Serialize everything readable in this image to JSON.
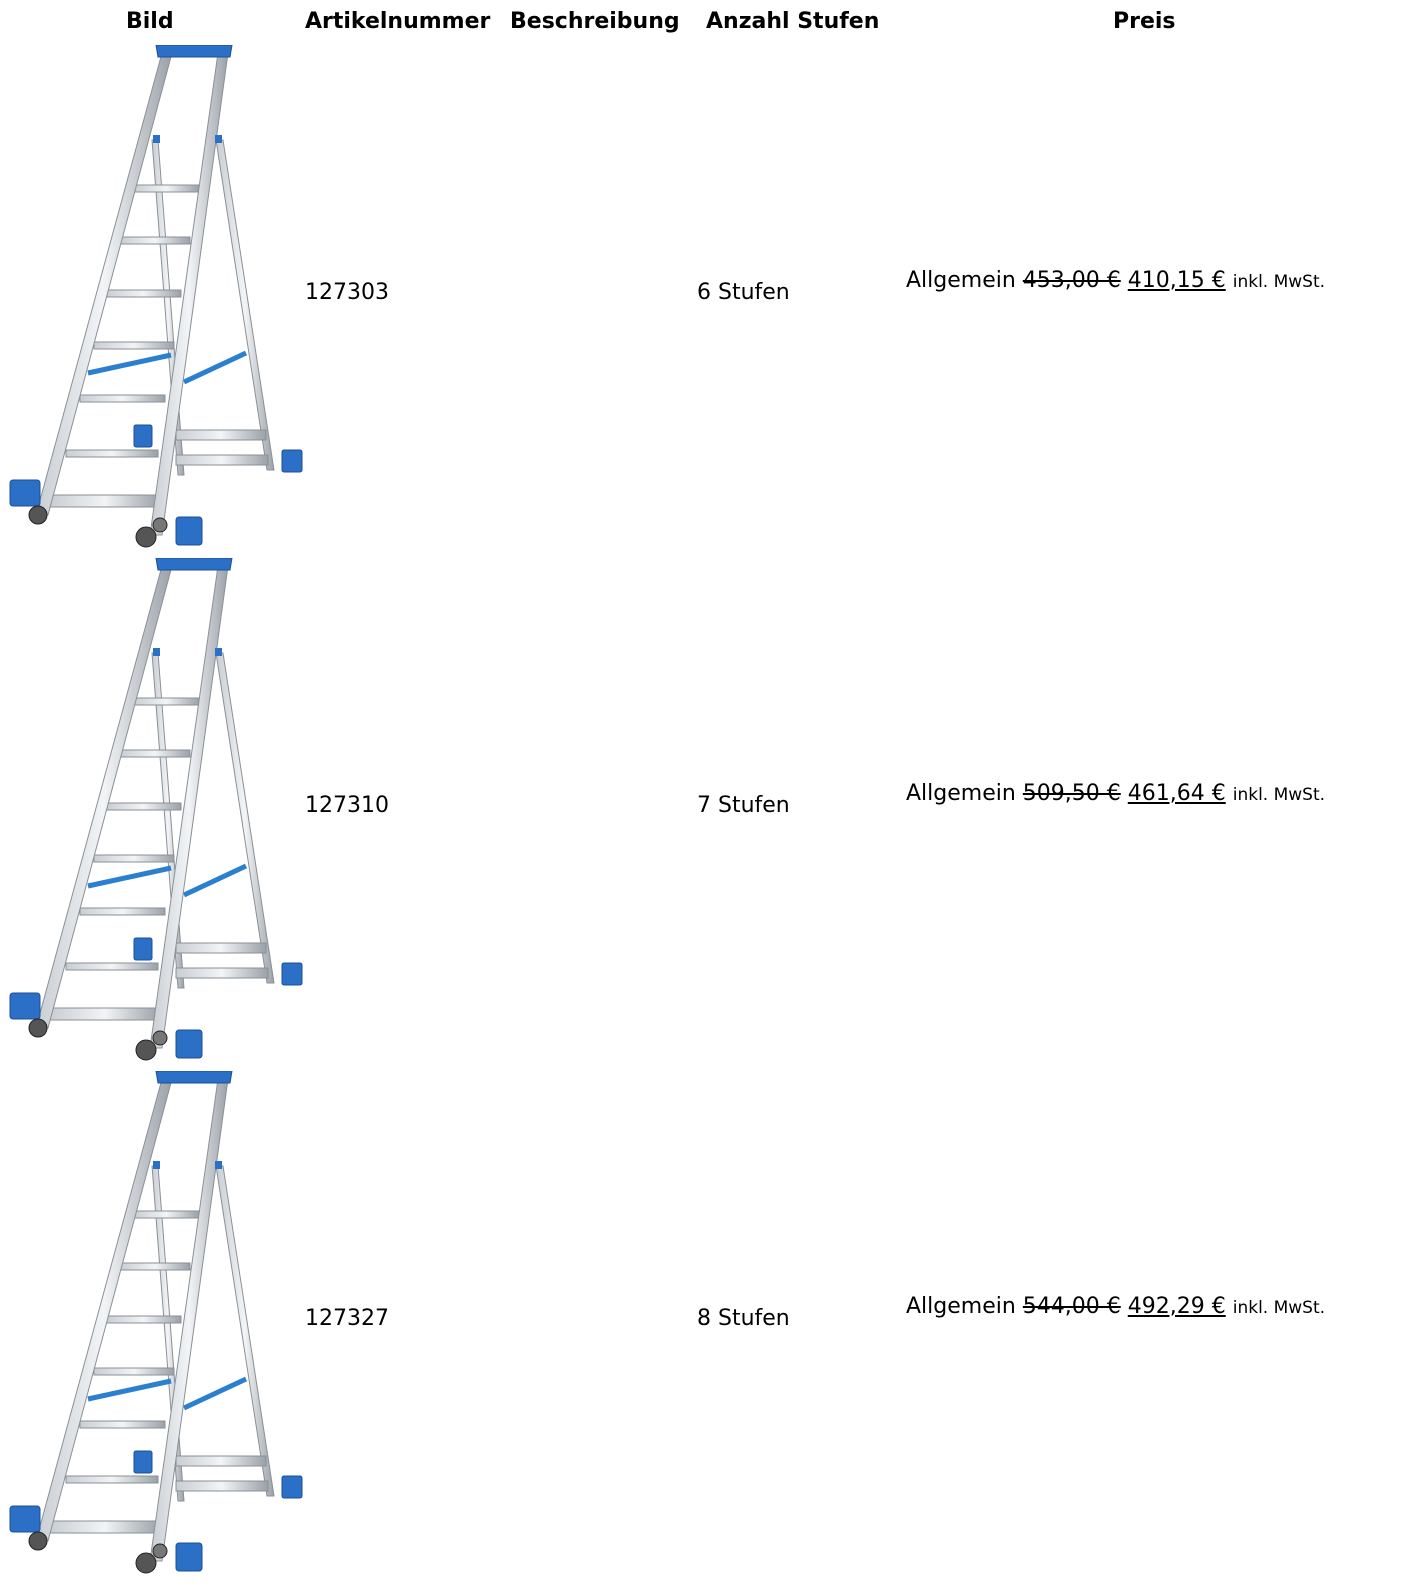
{
  "table": {
    "headers": [
      "Bild",
      "Artikelnummer",
      "Beschreibung",
      "Anzahl Stufen",
      "Preis"
    ],
    "rows": [
      {
        "article": "127303",
        "steps": "6 Stufen",
        "price_group": "Allgemein",
        "old_price": "453,00 €",
        "price": "410,15 €",
        "tax_note": "inkl. MwSt."
      },
      {
        "article": "127310",
        "steps": "7 Stufen",
        "price_group": "Allgemein",
        "old_price": "509,50 €",
        "price": "461,64 €",
        "tax_note": "inkl. MwSt."
      },
      {
        "article": "127327",
        "steps": "8 Stufen",
        "price_group": "Allgemein",
        "old_price": "544,00 €",
        "price": "492,29 €",
        "tax_note": "inkl. MwSt."
      }
    ]
  }
}
